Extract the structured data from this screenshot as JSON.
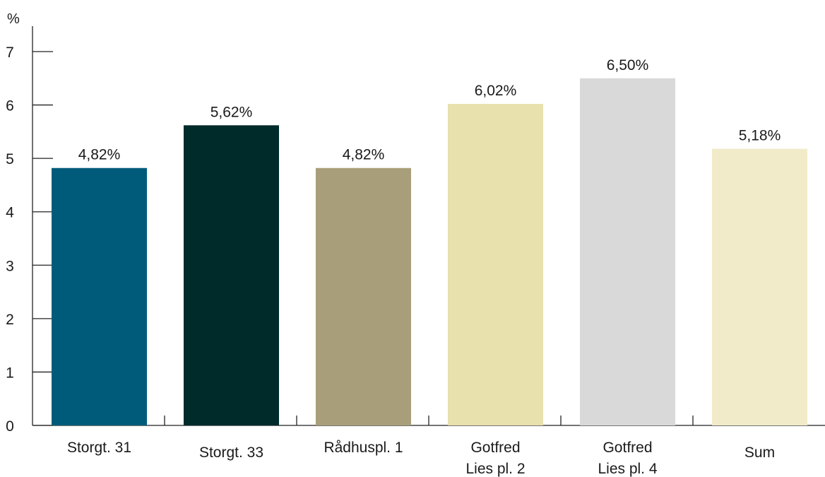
{
  "chart_data": {
    "type": "bar",
    "y_unit": "%",
    "categories": [
      [
        "Storgt. 31"
      ],
      [
        "Storgt. 33"
      ],
      [
        "Rådhuspl. 1"
      ],
      [
        "Gotfred",
        "Lies pl. 2"
      ],
      [
        "Gotfred",
        "Lies pl. 4"
      ],
      [
        "Sum"
      ]
    ],
    "values": [
      4.82,
      5.62,
      4.82,
      6.02,
      6.5,
      5.18
    ],
    "data_labels": [
      "4,82%",
      "5,62%",
      "4,82%",
      "6,02%",
      "6,50%",
      "5,18%"
    ],
    "bar_colors": [
      "#005b7a",
      "#002b2b",
      "#a89f7a",
      "#e8e0ad",
      "#d8d9d8",
      "#f1ebca"
    ],
    "ylim": [
      0,
      7
    ],
    "y_ticks": [
      "0",
      "1",
      "2",
      "3",
      "4",
      "5",
      "6",
      "7"
    ],
    "grid": false,
    "legend": "none"
  }
}
